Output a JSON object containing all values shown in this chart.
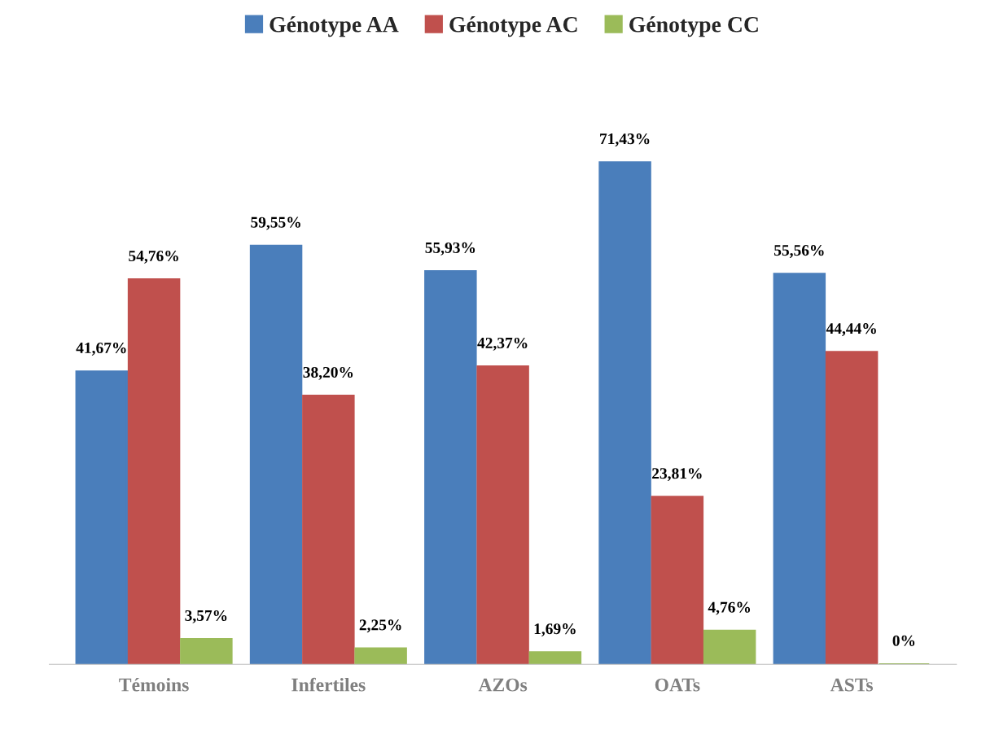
{
  "chart_data": {
    "type": "bar",
    "categories": [
      "Témoins",
      "Infertiles",
      "AZOs",
      "OATs",
      "ASTs"
    ],
    "series": [
      {
        "name": "Génotype AA",
        "color": "#4a7ebb",
        "values": [
          41.67,
          59.55,
          55.93,
          71.43,
          55.56
        ],
        "value_labels": [
          "41,67%",
          "59,55%",
          "55,93%",
          "71,43%",
          "55,56%"
        ]
      },
      {
        "name": "Génotype AC",
        "color": "#c0504d",
        "values": [
          54.76,
          38.2,
          42.37,
          23.81,
          44.44
        ],
        "value_labels": [
          "54,76%",
          "38,20%",
          "42,37%",
          "23,81%",
          "44,44%"
        ]
      },
      {
        "name": "Génotype CC",
        "color": "#9bbb59",
        "values": [
          3.57,
          2.25,
          1.69,
          4.76,
          0
        ],
        "value_labels": [
          "3,57%",
          "2,25%",
          "1,69%",
          "4,76%",
          "0%"
        ]
      }
    ],
    "legend": "top",
    "grid": false
  }
}
